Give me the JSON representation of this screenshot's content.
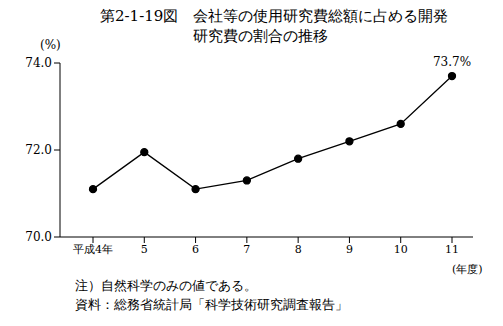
{
  "chart_data": {
    "type": "line",
    "title": "第2-1-19図　会社等の使用研究費総額に占める開発研究費の割合の推移",
    "y_label": "(%)",
    "x_label": "(年度)",
    "categories": [
      "平成4年",
      "5",
      "6",
      "7",
      "8",
      "9",
      "10",
      "11"
    ],
    "values": [
      71.1,
      71.95,
      71.1,
      71.3,
      71.8,
      72.2,
      72.6,
      73.7
    ],
    "data_labels": true,
    "value_labels": [
      null,
      null,
      null,
      null,
      null,
      null,
      null,
      "73.7%"
    ],
    "color": "#000000",
    "marker": "circle",
    "ylim": [
      70,
      74
    ],
    "yticks": [
      {
        "value": 70,
        "label": "70.0"
      },
      {
        "value": 72,
        "label": "72.0"
      },
      {
        "value": 74,
        "label": "74.0"
      }
    ],
    "grid": false,
    "notes": [
      "注）自然科学のみの値である。",
      "資料：総務省統計局「科学技術研究調査報告」"
    ]
  }
}
